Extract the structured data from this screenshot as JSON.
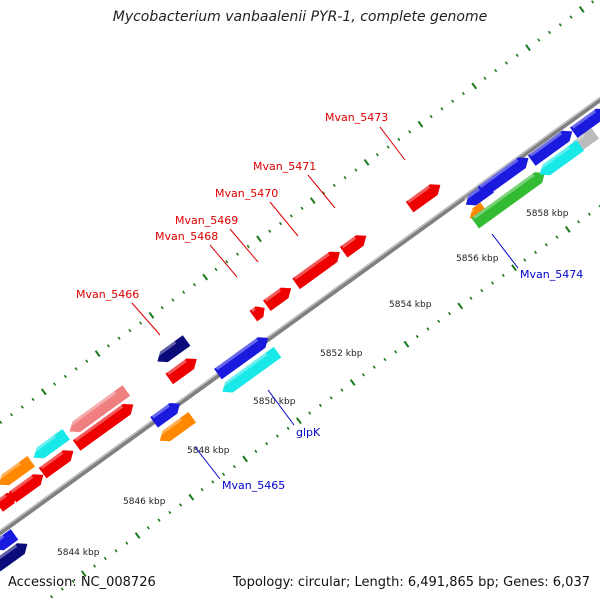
{
  "title": "Mycobacterium vanbaalenii PYR-1, complete genome",
  "footer": {
    "accession": "Accession: NC_008726",
    "stats": "Topology: circular; Length: 6,491,865 bp; Genes: 6,037"
  },
  "colors": {
    "red": "#ee0000",
    "pink": "#f08080",
    "blue": "#1a1adf",
    "cyan": "#18e8e8",
    "orange": "#ff8800",
    "green": "#33bb33",
    "navy": "#0a0a7a",
    "gray": "#bbbbbb",
    "axis": "#808080",
    "tick": "#1a7a1a",
    "label_red": "#dd0000",
    "label_blue": "#0000cc"
  },
  "kbp_ticks": [
    "5844 kbp",
    "5846 kbp",
    "5848 kbp",
    "5850 kbp",
    "5852 kbp",
    "5854 kbp",
    "5856 kbp",
    "5858 kbp"
  ],
  "gene_labels": [
    {
      "text": "Mvan_5473",
      "side": "top"
    },
    {
      "text": "Mvan_5471",
      "side": "top"
    },
    {
      "text": "Mvan_5470",
      "side": "top"
    },
    {
      "text": "Mvan_5469",
      "side": "top"
    },
    {
      "text": "Mvan_5468",
      "side": "top"
    },
    {
      "text": "Mvan_5466",
      "side": "top"
    },
    {
      "text": "glpK",
      "side": "bottom"
    },
    {
      "text": "Mvan_5465",
      "side": "bottom"
    },
    {
      "text": "Mvan_5474",
      "side": "bottom"
    }
  ]
}
